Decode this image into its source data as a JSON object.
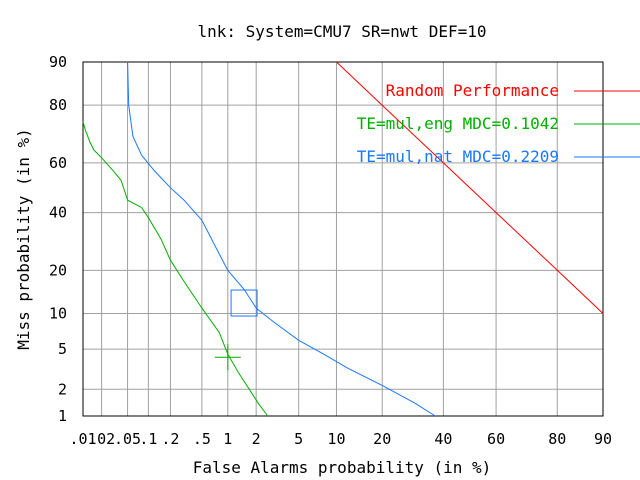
{
  "chart_data": {
    "type": "line",
    "title": "lnk: System=CMU7 SR=nwt DEF=10",
    "xlabel": "False Alarms probability (in %)",
    "ylabel": "Miss probability (in %)",
    "x_scale": "normal-deviate (probit)",
    "y_scale": "normal-deviate (probit)",
    "xlim": [
      0.01,
      90
    ],
    "ylim": [
      1,
      90
    ],
    "x_ticks": [
      0.01,
      0.02,
      0.05,
      0.1,
      0.2,
      0.5,
      1,
      2,
      5,
      10,
      20,
      40,
      60,
      80,
      90
    ],
    "x_tick_labels": [
      ".01",
      ".02",
      ".05",
      ".1",
      ".2",
      ".5",
      "1",
      "2",
      "5",
      "10",
      "20",
      "40",
      "60",
      "80",
      "90"
    ],
    "y_ticks": [
      1,
      2,
      5,
      10,
      20,
      40,
      60,
      80,
      90
    ],
    "y_tick_labels": [
      "1",
      "2",
      "5",
      "10",
      "20",
      "40",
      "60",
      "80",
      "90"
    ],
    "grid": true,
    "legend_position": "top-right",
    "series": [
      {
        "name": "Random Performance",
        "color": "#ff0000",
        "x": [
          10,
          20,
          40,
          60,
          80,
          90
        ],
        "y": [
          90,
          80,
          60,
          40,
          20,
          10
        ]
      },
      {
        "name": "TE=mul,eng MDC=0.1042",
        "color": "#00b000",
        "x": [
          0.01,
          0.011,
          0.013,
          0.015,
          0.02,
          0.03,
          0.04,
          0.05,
          0.08,
          0.1,
          0.15,
          0.2,
          0.3,
          0.5,
          0.8,
          1.0,
          1.3,
          1.7,
          2.1,
          2.6
        ],
        "y": [
          75,
          72,
          68,
          65,
          62,
          57,
          53,
          45,
          42,
          38,
          30,
          23,
          17,
          11,
          7,
          4.5,
          3,
          2,
          1.4,
          1
        ]
      },
      {
        "name": "TE=mul,nat MDC=0.2209",
        "color": "#1a78ff",
        "x": [
          0.05,
          0.052,
          0.06,
          0.08,
          0.12,
          0.15,
          0.2,
          0.3,
          0.5,
          0.8,
          1.0,
          1.5,
          2.0,
          3.0,
          5.0,
          8.0,
          12,
          20,
          30,
          37
        ],
        "y": [
          90,
          80,
          70,
          63,
          57,
          54,
          50,
          45,
          37,
          25,
          20,
          15,
          11,
          8.5,
          6,
          4.5,
          3.3,
          2.2,
          1.4,
          1
        ]
      }
    ],
    "mdc_markers": [
      {
        "series": "TE=mul,eng MDC=0.1042",
        "shape": "cross",
        "x": 1.0,
        "y": 4.2
      },
      {
        "series": "TE=mul,nat MDC=0.2209",
        "shape": "square",
        "x": 1.5,
        "y": 12
      }
    ]
  }
}
